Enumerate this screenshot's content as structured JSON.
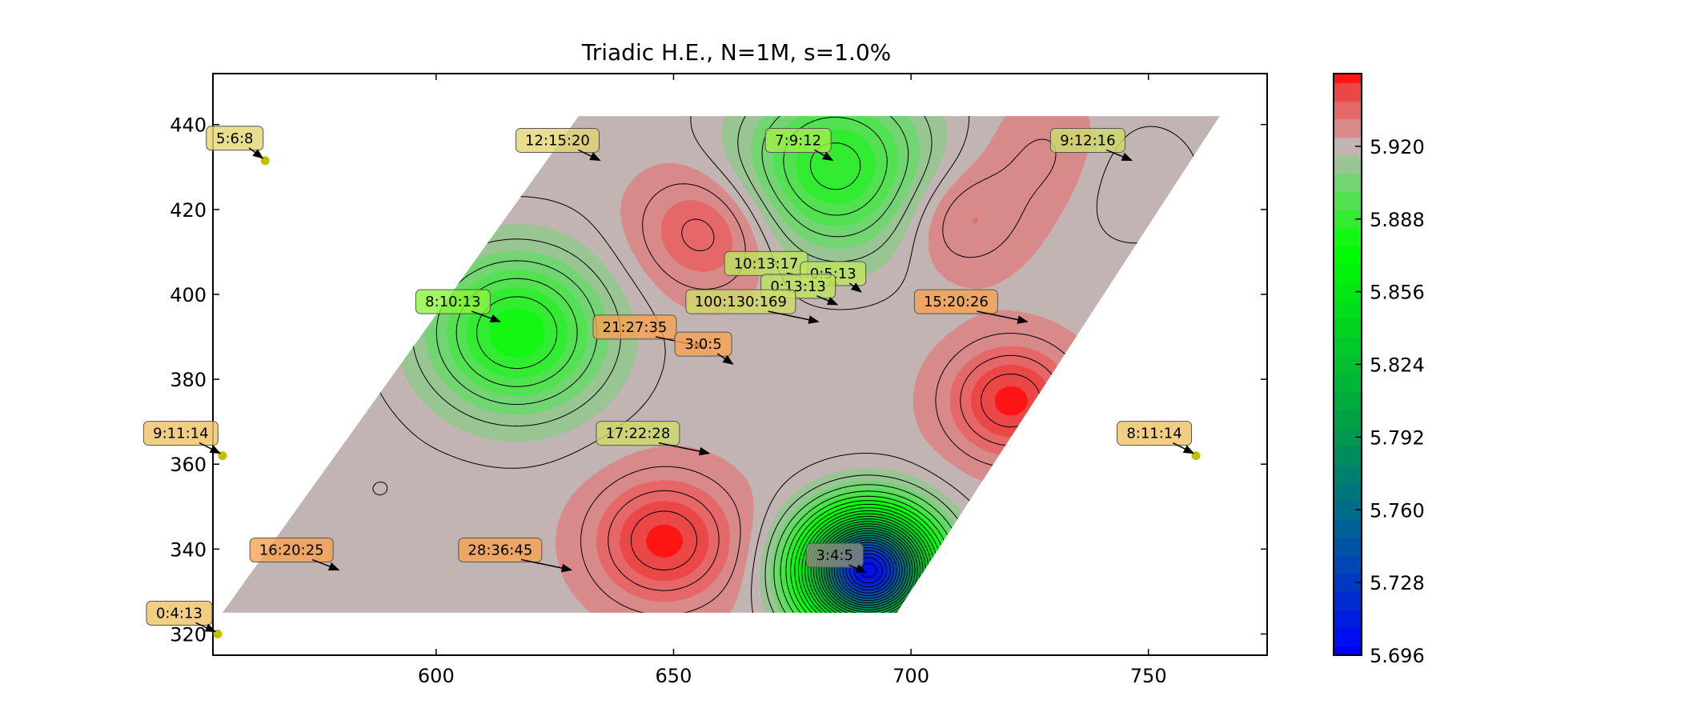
{
  "chart_data": {
    "type": "contour",
    "title": "Triadic H.E., N=1M, s=1.0%",
    "xlabel": "",
    "ylabel": "",
    "xlim": [
      553,
      775
    ],
    "ylim": [
      315,
      452
    ],
    "xticks": [
      600,
      650,
      700,
      750
    ],
    "yticks": [
      320,
      340,
      360,
      380,
      400,
      420,
      440
    ],
    "grid": false,
    "colorbar": {
      "min": 5.696,
      "max": 5.952,
      "ticks": [
        5.696,
        5.728,
        5.76,
        5.792,
        5.824,
        5.856,
        5.888,
        5.92
      ],
      "tick_labels": [
        "5.696",
        "5.728",
        "5.760",
        "5.792",
        "5.824",
        "5.856",
        "5.888",
        "5.920"
      ]
    },
    "contour_peaks": [
      {
        "x": 691,
        "y": 335,
        "value": 5.7
      },
      {
        "x": 684,
        "y": 430,
        "value": 5.885
      },
      {
        "x": 617,
        "y": 391,
        "value": 5.88
      },
      {
        "x": 745,
        "y": 427,
        "value": 5.915
      },
      {
        "x": 588,
        "y": 354,
        "value": 5.92
      },
      {
        "x": 635,
        "y": 432,
        "value": 5.92
      },
      {
        "x": 648,
        "y": 342,
        "value": 5.95
      },
      {
        "x": 721,
        "y": 375,
        "value": 5.95
      },
      {
        "x": 657,
        "y": 415,
        "value": 5.94
      },
      {
        "x": 710,
        "y": 418,
        "value": 5.935
      },
      {
        "x": 730,
        "y": 432,
        "value": 5.93
      }
    ],
    "annotations": [
      {
        "label": "5:6:8",
        "x": 564,
        "y": 431.5,
        "value": 5.921
      },
      {
        "label": "12:15:20",
        "x": 635,
        "y": 431,
        "value": 5.921
      },
      {
        "label": "7:9:12",
        "x": 684,
        "y": 431,
        "value": 5.886
      },
      {
        "label": "9:12:16",
        "x": 747,
        "y": 431,
        "value": 5.912
      },
      {
        "label": "10:13:17",
        "x": 685,
        "y": 402,
        "value": 5.9
      },
      {
        "label": "0:5:13",
        "x": 690,
        "y": 400,
        "value": 5.9
      },
      {
        "label": "0:13:13",
        "x": 685,
        "y": 397,
        "value": 5.905
      },
      {
        "label": "100:130:169",
        "x": 681,
        "y": 393,
        "value": 5.915
      },
      {
        "label": "15:20:26",
        "x": 725,
        "y": 393,
        "value": 5.945
      },
      {
        "label": "8:10:13",
        "x": 614,
        "y": 393,
        "value": 5.875
      },
      {
        "label": "21:27:35",
        "x": 657,
        "y": 387,
        "value": 5.94
      },
      {
        "label": "3:0:5",
        "x": 663,
        "y": 383,
        "value": 5.94
      },
      {
        "label": "17:22:28",
        "x": 658,
        "y": 362,
        "value": 5.915
      },
      {
        "label": "9:11:14",
        "x": 555,
        "y": 362,
        "value": 5.925
      },
      {
        "label": "8:11:14",
        "x": 760,
        "y": 362,
        "value": 5.925
      },
      {
        "label": "16:20:25",
        "x": 580,
        "y": 334.5,
        "value": 5.94
      },
      {
        "label": "28:36:45",
        "x": 629,
        "y": 334.5,
        "value": 5.945
      },
      {
        "label": "3:4:5",
        "x": 691,
        "y": 334,
        "value": 5.71
      },
      {
        "label": "0:4:13",
        "x": 554,
        "y": 320,
        "value": 5.925
      }
    ]
  }
}
